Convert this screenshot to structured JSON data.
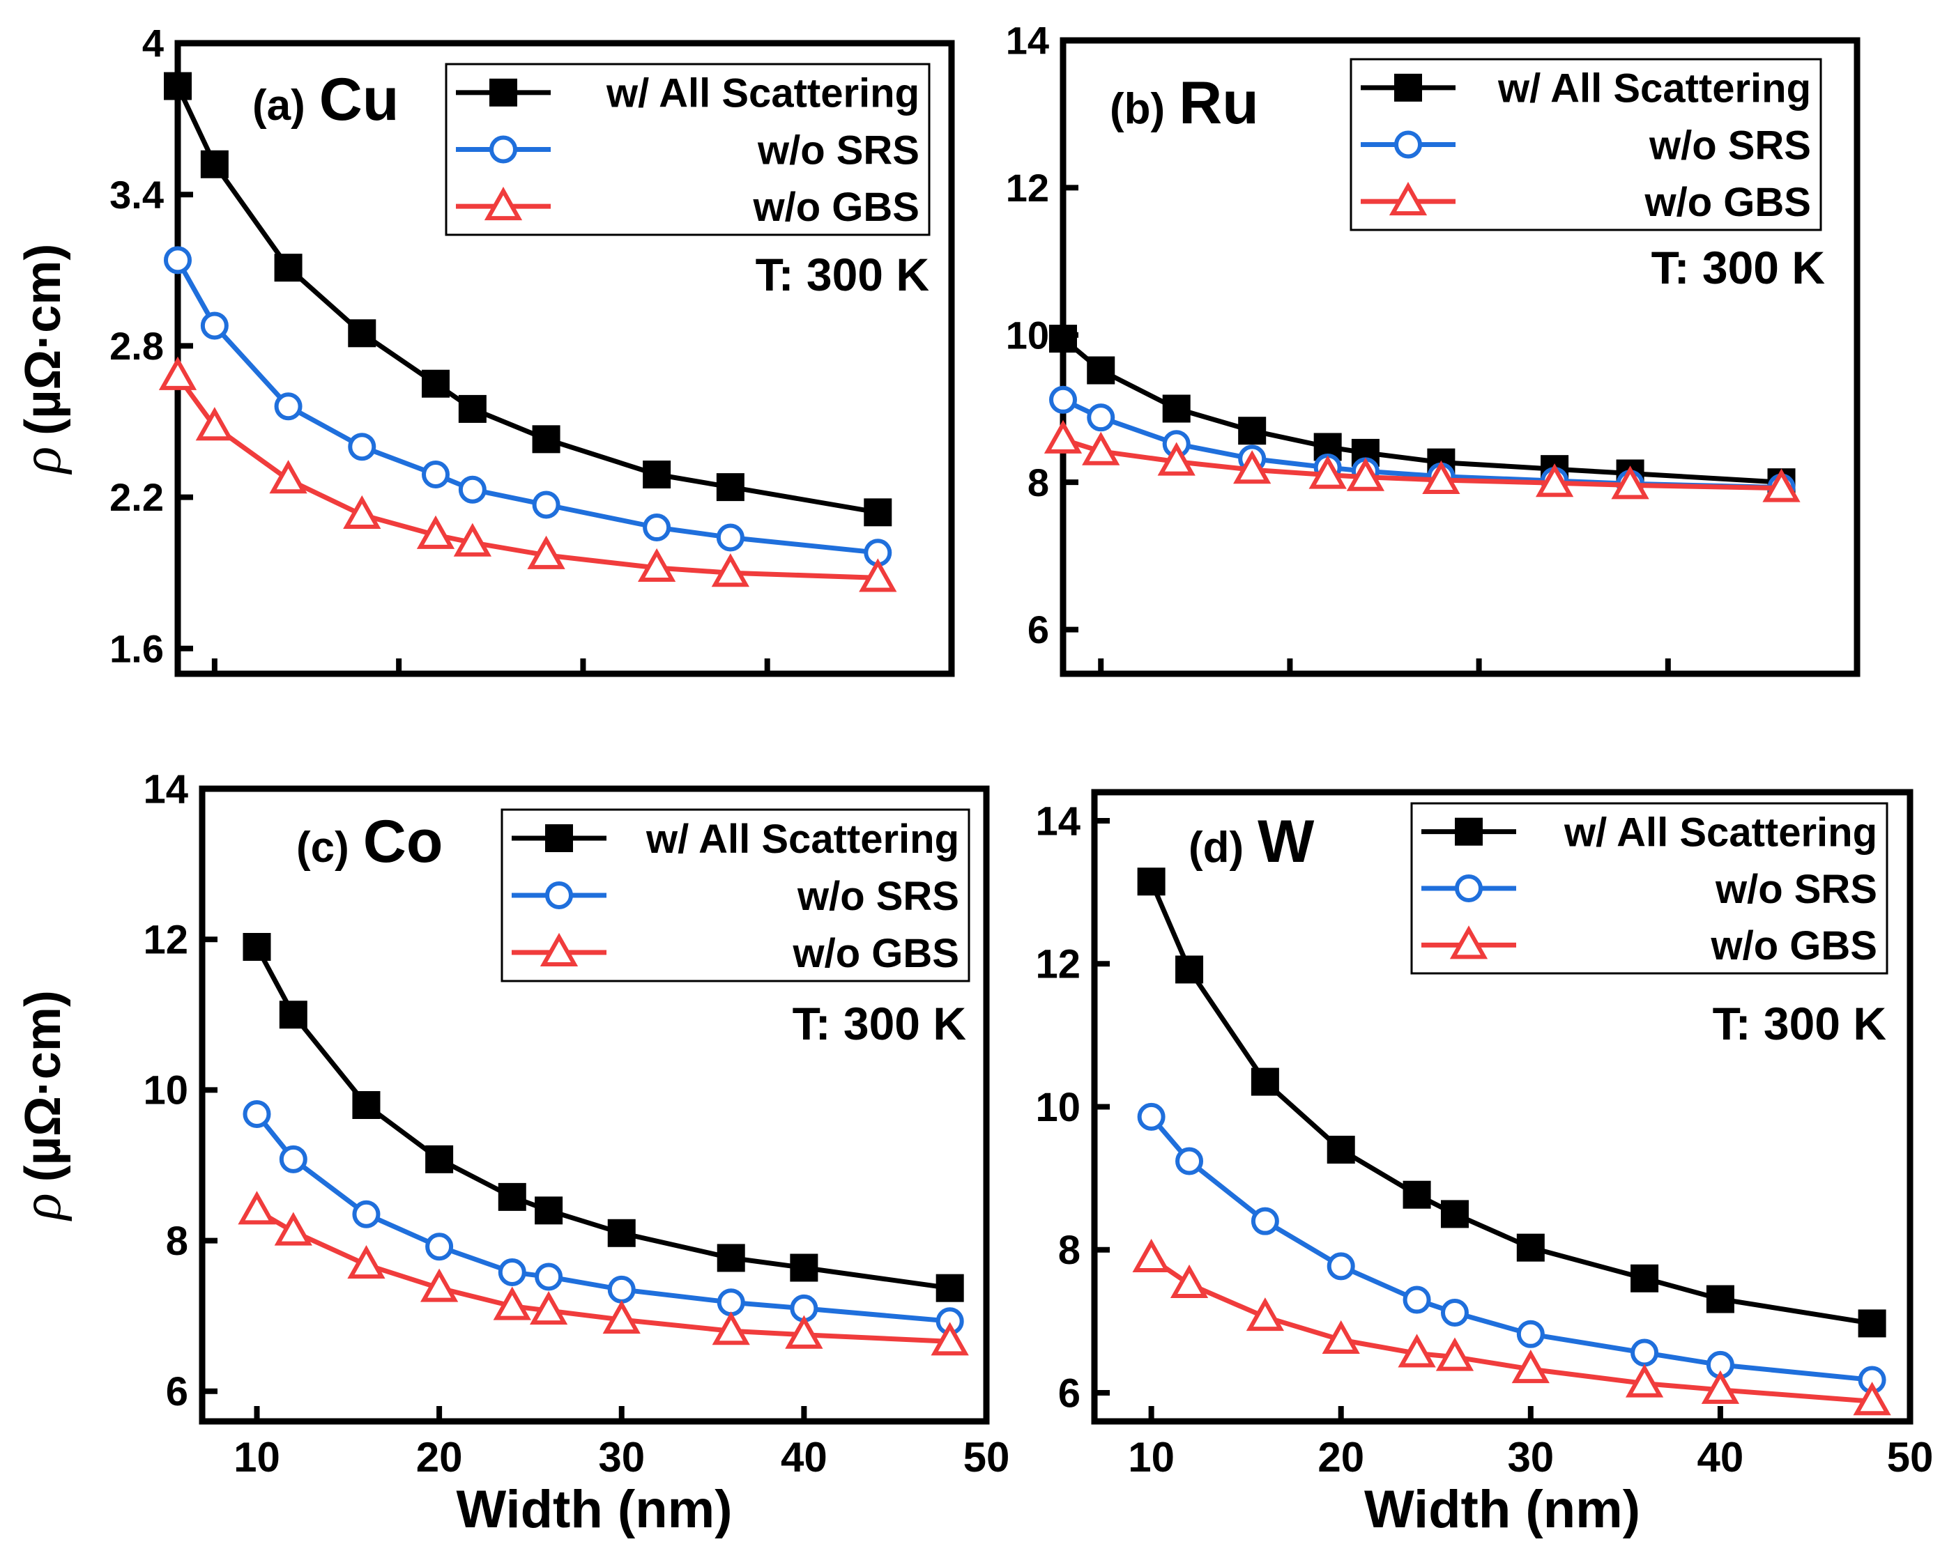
{
  "figure": {
    "colors": {
      "all": "#000000",
      "srs": "#1f6fdc",
      "gbs": "#f03c3c",
      "axis": "#000000",
      "background": "#ffffff"
    },
    "marker_styles": {
      "all": "filled-square",
      "srs": "open-circle",
      "gbs": "open-triangle"
    },
    "x_axis_title": "Width (nm)",
    "y_axis_title_symbol": "ρ",
    "y_axis_title_unit": "(µΩ·cm)"
  },
  "chart_data": [
    {
      "type": "line",
      "panel": "(a)",
      "metal": "Cu",
      "title": "(a) Cu",
      "temperature": "T: 300 K",
      "xlabel": "",
      "ylabel": "ρ (µΩ·cm)",
      "xlim": [
        8,
        50
      ],
      "ylim": [
        1.5,
        4.0
      ],
      "xticks": [
        10,
        20,
        30,
        40,
        50
      ],
      "xtick_labels_shown": false,
      "yticks": [
        1.6,
        2.2,
        2.8,
        3.4,
        4.0
      ],
      "ytick_labels": [
        "1.6",
        "2.2",
        "2.8",
        "3.4",
        "4"
      ],
      "x": [
        8,
        10,
        14,
        18,
        22,
        24,
        28,
        34,
        38,
        46
      ],
      "series": [
        {
          "name": "w/ All Scattering",
          "key": "all",
          "values": [
            3.83,
            3.52,
            3.11,
            2.85,
            2.65,
            2.55,
            2.43,
            2.29,
            2.24,
            2.14
          ]
        },
        {
          "name": "w/o SRS",
          "key": "srs",
          "values": [
            3.14,
            2.88,
            2.56,
            2.4,
            2.29,
            2.23,
            2.17,
            2.08,
            2.04,
            1.98
          ]
        },
        {
          "name": "w/o GBS",
          "key": "gbs",
          "values": [
            2.68,
            2.48,
            2.27,
            2.13,
            2.05,
            2.02,
            1.97,
            1.92,
            1.9,
            1.88
          ]
        }
      ],
      "legend": [
        "w/ All Scattering",
        "w/o SRS",
        "w/o GBS"
      ],
      "legend_position": "top-right"
    },
    {
      "type": "line",
      "panel": "(b)",
      "metal": "Ru",
      "title": "(b) Ru",
      "temperature": "T: 300 K",
      "xlabel": "",
      "ylabel": "",
      "xlim": [
        8,
        50
      ],
      "ylim": [
        5.4,
        14
      ],
      "xticks": [
        10,
        20,
        30,
        40,
        50
      ],
      "xtick_labels_shown": false,
      "yticks": [
        6,
        8,
        10,
        12,
        14
      ],
      "ytick_labels": [
        "6",
        "8",
        "10",
        "12",
        "14"
      ],
      "x": [
        8,
        10,
        14,
        18,
        22,
        24,
        28,
        34,
        38,
        46
      ],
      "series": [
        {
          "name": "w/ All Scattering",
          "key": "all",
          "values": [
            9.95,
            9.52,
            9.0,
            8.7,
            8.48,
            8.4,
            8.27,
            8.18,
            8.12,
            8.0
          ]
        },
        {
          "name": "w/o SRS",
          "key": "srs",
          "values": [
            9.12,
            8.88,
            8.52,
            8.32,
            8.2,
            8.15,
            8.08,
            8.02,
            7.98,
            7.93
          ]
        },
        {
          "name": "w/o GBS",
          "key": "gbs",
          "values": [
            8.58,
            8.42,
            8.28,
            8.17,
            8.1,
            8.07,
            8.03,
            7.99,
            7.96,
            7.92
          ]
        }
      ],
      "legend": [
        "w/ All Scattering",
        "w/o SRS",
        "w/o GBS"
      ],
      "legend_position": "top-right"
    },
    {
      "type": "line",
      "panel": "(c)",
      "metal": "Co",
      "title": "(c) Co",
      "temperature": "T: 300 K",
      "xlabel": "Width (nm)",
      "ylabel": "ρ (µΩ·cm)",
      "xlim": [
        7,
        50
      ],
      "ylim": [
        5.6,
        14
      ],
      "xticks": [
        10,
        20,
        30,
        40,
        50
      ],
      "xtick_labels_shown": true,
      "xtick_labels": [
        "10",
        "20",
        "30",
        "40",
        "50"
      ],
      "yticks": [
        6,
        8,
        10,
        12,
        14
      ],
      "ytick_labels": [
        "6",
        "8",
        "10",
        "12",
        "14"
      ],
      "x": [
        10,
        12,
        16,
        20,
        24,
        26,
        30,
        36,
        40,
        48
      ],
      "series": [
        {
          "name": "w/ All Scattering",
          "key": "all",
          "values": [
            11.9,
            11.0,
            9.8,
            9.08,
            8.58,
            8.4,
            8.1,
            7.77,
            7.64,
            7.37
          ]
        },
        {
          "name": "w/o SRS",
          "key": "srs",
          "values": [
            9.68,
            9.08,
            8.35,
            7.92,
            7.58,
            7.52,
            7.35,
            7.18,
            7.1,
            6.93
          ]
        },
        {
          "name": "w/o GBS",
          "key": "gbs",
          "values": [
            8.4,
            8.12,
            7.68,
            7.37,
            7.13,
            7.07,
            6.95,
            6.8,
            6.75,
            6.66
          ]
        }
      ],
      "legend": [
        "w/ All Scattering",
        "w/o SRS",
        "w/o GBS"
      ],
      "legend_position": "top-right"
    },
    {
      "type": "line",
      "panel": "(d)",
      "metal": "W",
      "title": "(d) W",
      "temperature": "T: 300 K",
      "xlabel": "Width (nm)",
      "ylabel": "",
      "xlim": [
        7,
        50
      ],
      "ylim": [
        5.6,
        14.4
      ],
      "xticks": [
        10,
        20,
        30,
        40,
        50
      ],
      "xtick_labels_shown": true,
      "xtick_labels": [
        "10",
        "20",
        "30",
        "40",
        "50"
      ],
      "yticks": [
        6,
        8,
        10,
        12,
        14
      ],
      "ytick_labels": [
        "6",
        "8",
        "10",
        "12",
        "14"
      ],
      "x": [
        10,
        12,
        16,
        20,
        24,
        26,
        30,
        36,
        40,
        48
      ],
      "series": [
        {
          "name": "w/ All Scattering",
          "key": "all",
          "values": [
            13.15,
            11.92,
            10.35,
            9.4,
            8.77,
            8.5,
            8.03,
            7.6,
            7.31,
            6.97
          ]
        },
        {
          "name": "w/o SRS",
          "key": "srs",
          "values": [
            9.86,
            9.24,
            8.4,
            7.77,
            7.3,
            7.12,
            6.82,
            6.56,
            6.39,
            6.18
          ]
        },
        {
          "name": "w/o GBS",
          "key": "gbs",
          "values": [
            7.88,
            7.52,
            7.06,
            6.74,
            6.55,
            6.5,
            6.33,
            6.13,
            6.04,
            5.88
          ]
        }
      ],
      "legend": [
        "w/ All Scattering",
        "w/o SRS",
        "w/o GBS"
      ],
      "legend_position": "top-right"
    }
  ]
}
